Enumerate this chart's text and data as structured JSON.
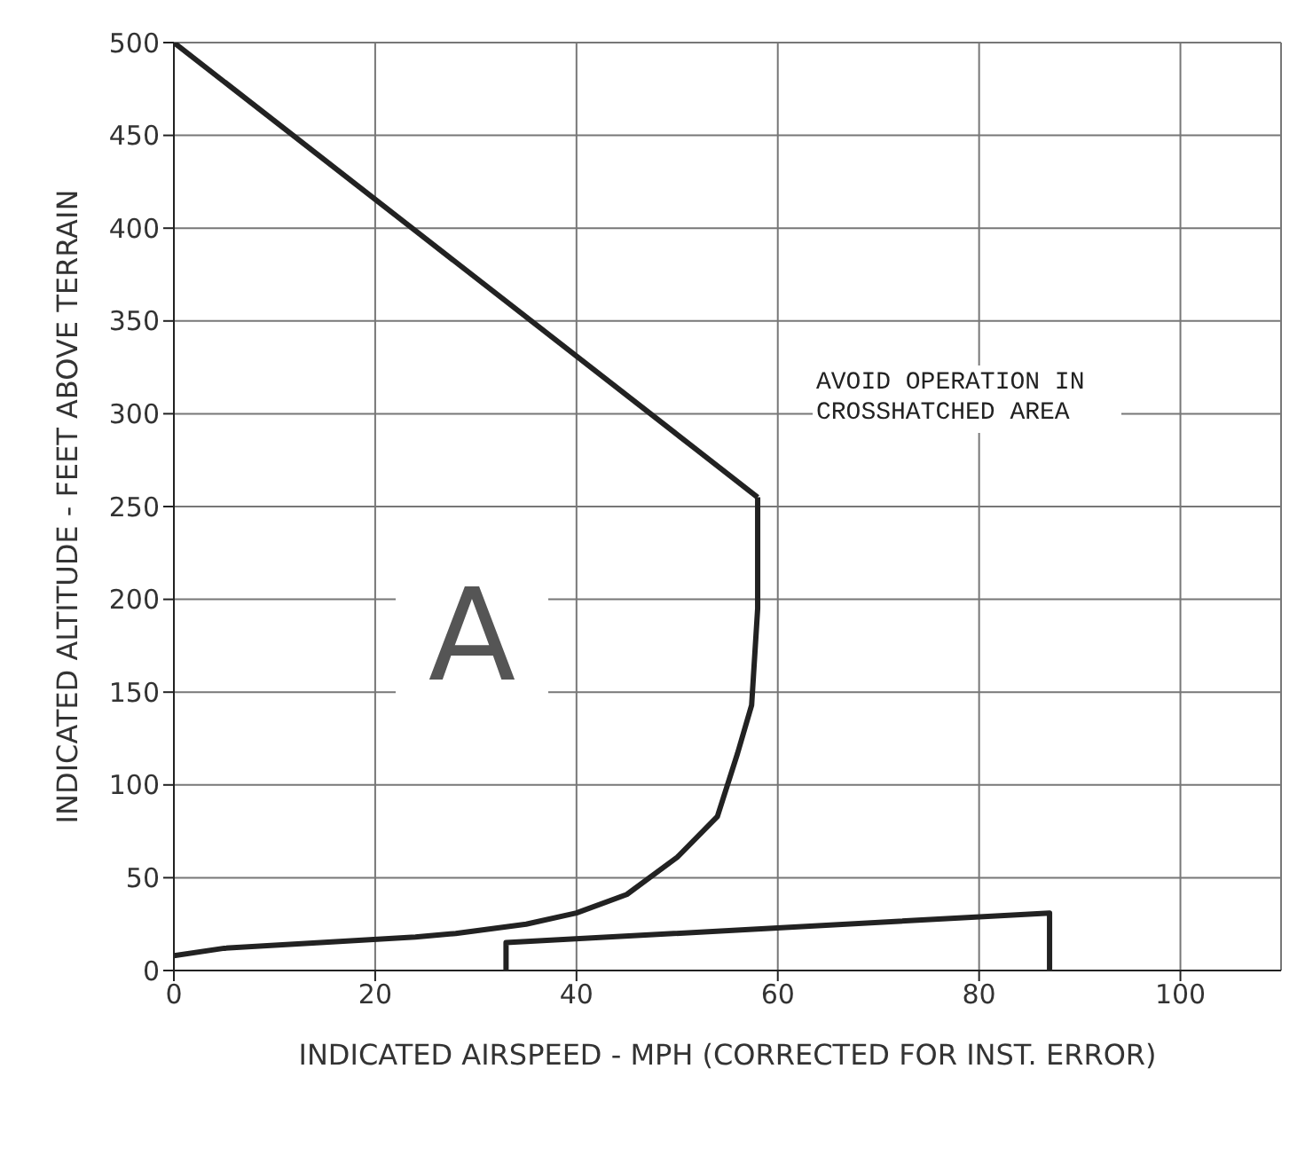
{
  "chart_data": {
    "type": "line",
    "xlabel": "INDICATED AIRSPEED - MPH (CORRECTED FOR INST. ERROR)",
    "ylabel": "INDICATED ALTITUDE - FEET ABOVE TERRAIN",
    "annotations": [
      "AVOID OPERATION IN CROSSHATCHED AREA",
      "A"
    ],
    "series": [
      {
        "color": "#222222",
        "x": [
          0,
          58
        ],
        "values": [
          500,
          255
        ]
      },
      {
        "color": "#222222",
        "x": [
          0,
          5,
          24,
          28,
          35,
          40,
          45,
          50,
          54,
          56,
          57.4,
          58,
          58
        ],
        "values": [
          8,
          12,
          18,
          20,
          25,
          31,
          41,
          61,
          83,
          117,
          143,
          195,
          255
        ]
      },
      {
        "color": "#222222",
        "x": [
          33,
          33,
          87,
          87
        ],
        "values": [
          0,
          15,
          31,
          0
        ]
      }
    ],
    "xlim": [
      0,
      110
    ],
    "xticks": [
      0,
      20,
      40,
      60,
      80,
      100
    ],
    "ylim": [
      0,
      500
    ],
    "yticks": [
      0,
      50,
      100,
      150,
      200,
      250,
      300,
      350,
      400,
      450,
      500
    ],
    "grid": true,
    "marker": "none",
    "line_style": "solid"
  }
}
